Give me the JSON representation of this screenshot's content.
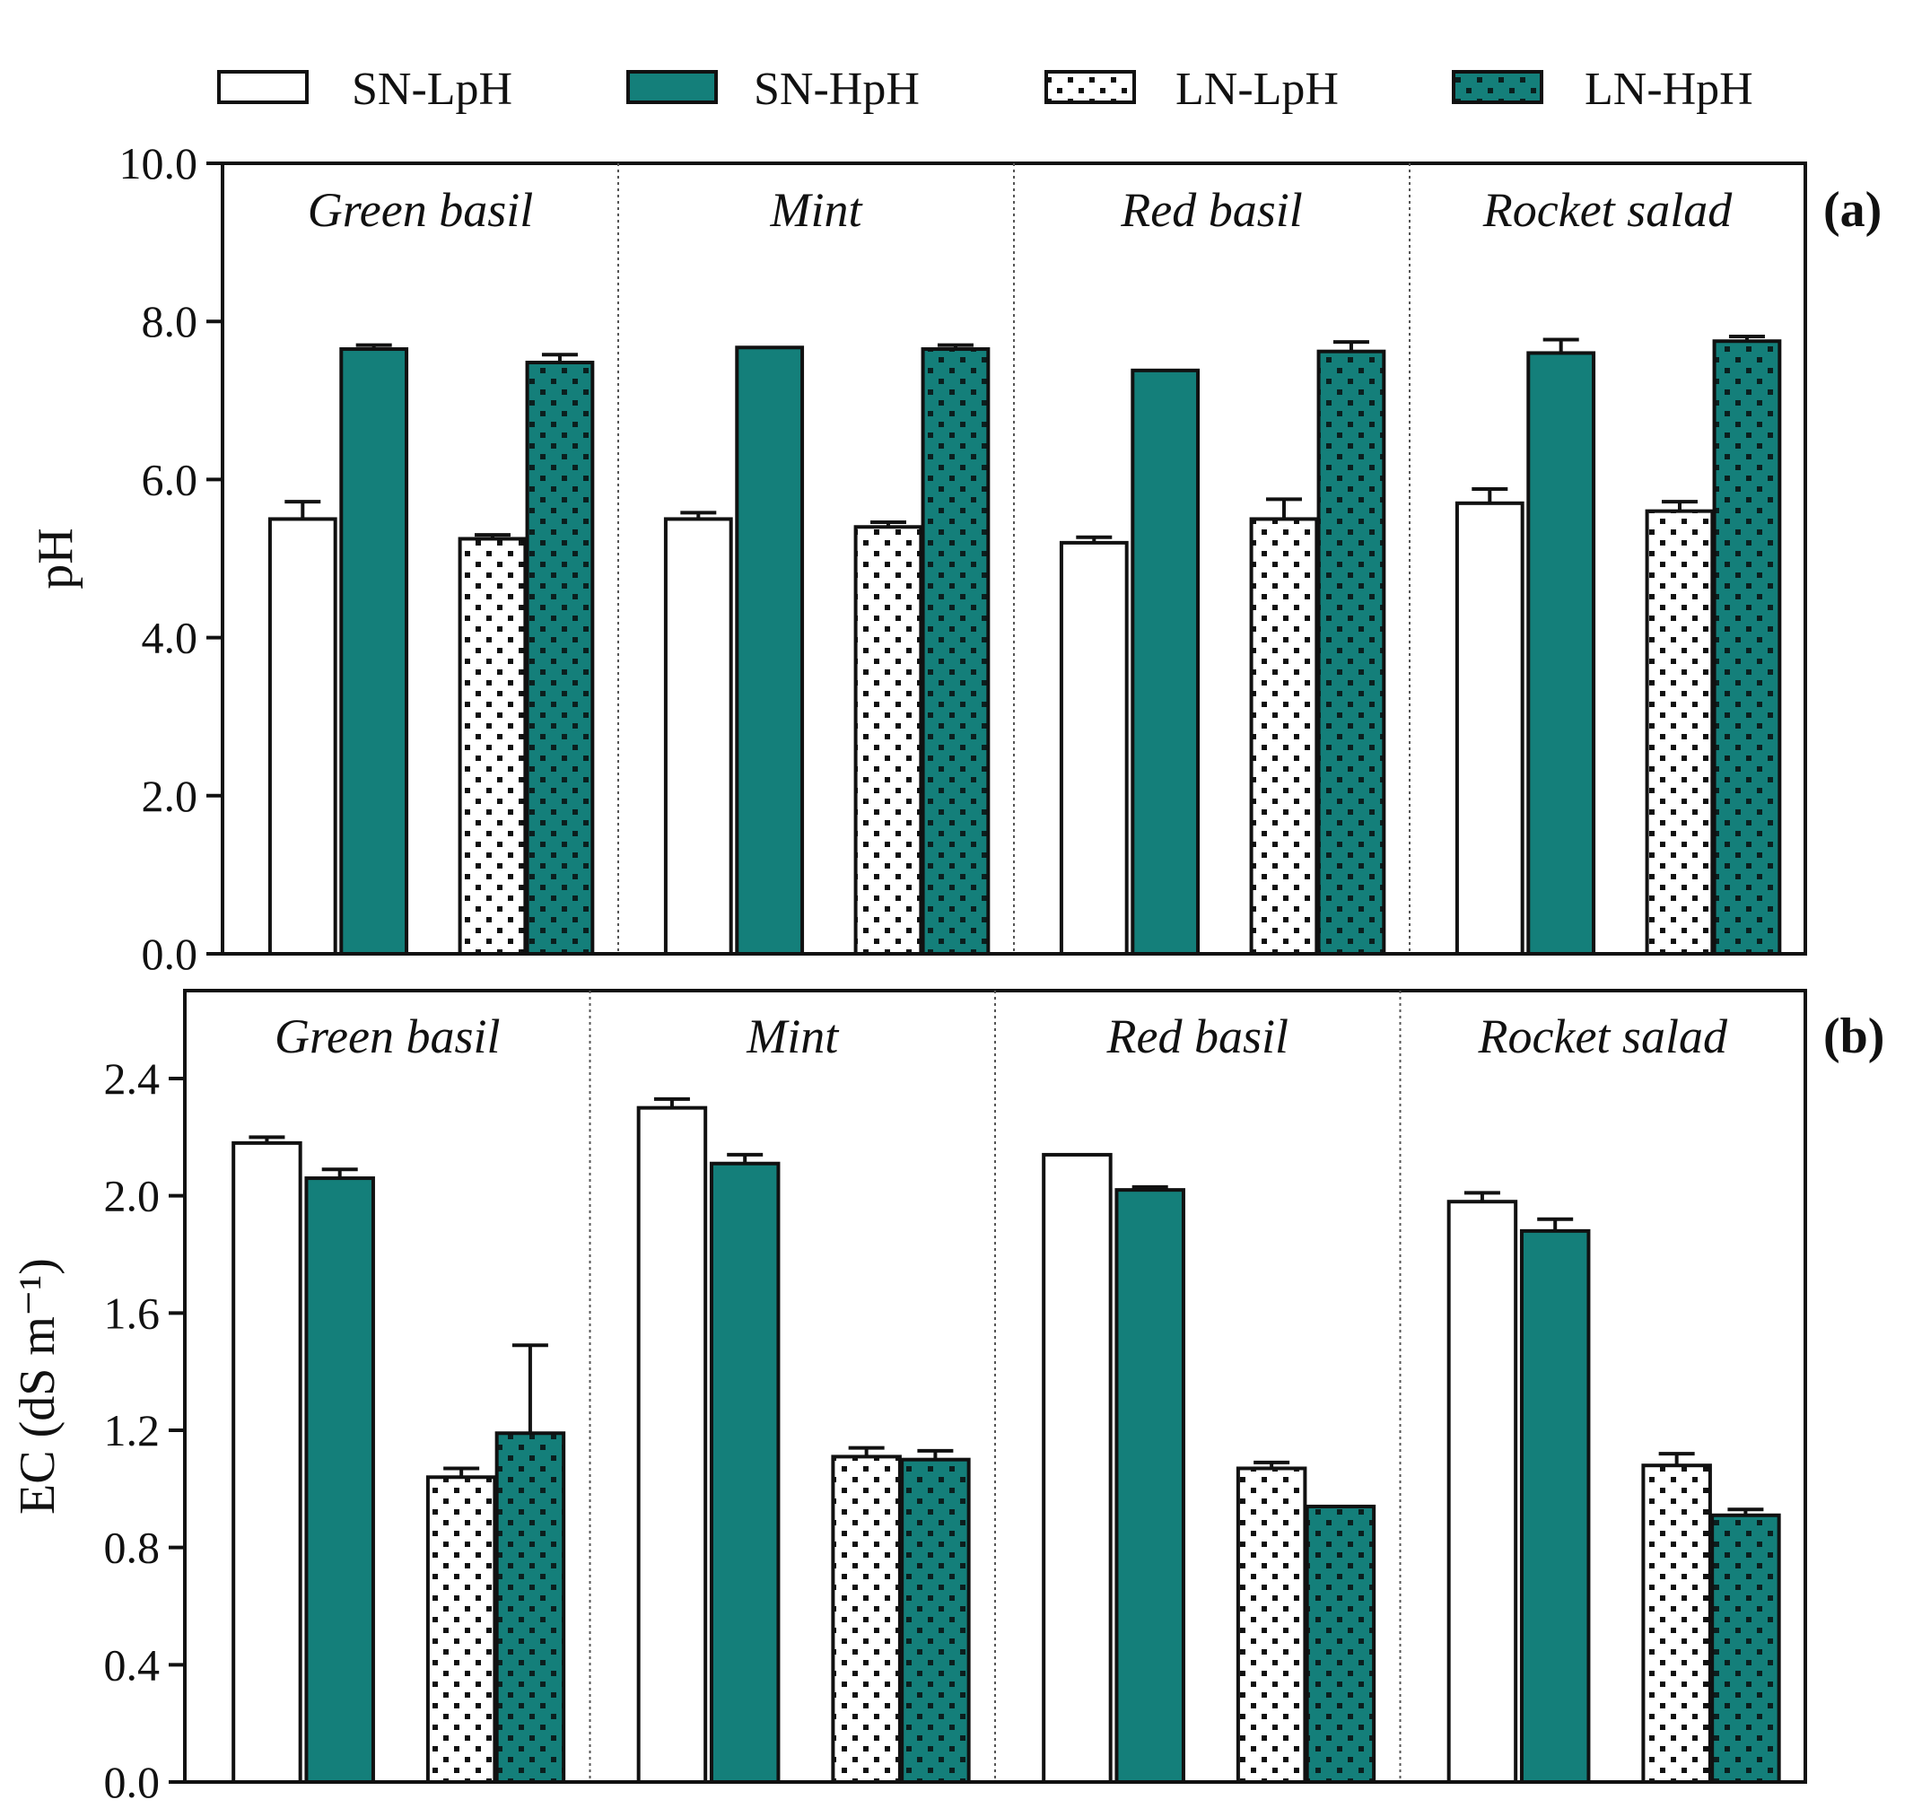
{
  "legend": {
    "items": [
      {
        "label": "SN-LpH",
        "fill": "white"
      },
      {
        "label": "SN-HpH",
        "fill": "teal"
      },
      {
        "label": "LN-LpH",
        "fill": "white-dotted"
      },
      {
        "label": "LN-HpH",
        "fill": "teal-dotted"
      }
    ]
  },
  "colors": {
    "teal": "#147f7a",
    "outline": "#111111",
    "dot_on_teal": "#0b1f1e"
  },
  "chart_data": [
    {
      "type": "bar",
      "panel_label": "(a)",
      "ylabel": "pH",
      "ylim": [
        0,
        10
      ],
      "yticks": [
        "0.0",
        "2.0",
        "4.0",
        "6.0",
        "8.0",
        "10.0"
      ],
      "categories": [
        "Green basil",
        "Mint",
        "Red basil",
        "Rocket salad"
      ],
      "series": [
        {
          "name": "SN-LpH",
          "values": [
            5.5,
            5.5,
            5.2,
            5.7
          ],
          "errors": [
            0.22,
            0.08,
            0.07,
            0.18
          ]
        },
        {
          "name": "SN-HpH",
          "values": [
            7.65,
            7.67,
            7.38,
            7.6
          ],
          "errors": [
            0.05,
            0.0,
            0.0,
            0.17
          ]
        },
        {
          "name": "LN-LpH",
          "values": [
            5.25,
            5.4,
            5.5,
            5.6
          ],
          "errors": [
            0.05,
            0.06,
            0.25,
            0.12
          ]
        },
        {
          "name": "LN-HpH",
          "values": [
            7.48,
            7.65,
            7.62,
            7.75
          ],
          "errors": [
            0.1,
            0.05,
            0.12,
            0.06
          ]
        }
      ]
    },
    {
      "type": "bar",
      "panel_label": "(b)",
      "ylabel": "EC (dS m⁻¹)",
      "ylim": [
        0,
        2.7
      ],
      "yticks": [
        "0.0",
        "0.4",
        "0.8",
        "1.2",
        "1.6",
        "2.0",
        "2.4"
      ],
      "categories": [
        "Green basil",
        "Mint",
        "Red basil",
        "Rocket salad"
      ],
      "series": [
        {
          "name": "SN-LpH",
          "values": [
            2.18,
            2.3,
            2.14,
            1.98
          ],
          "errors": [
            0.02,
            0.03,
            0.0,
            0.03
          ]
        },
        {
          "name": "SN-HpH",
          "values": [
            2.06,
            2.11,
            2.02,
            1.88
          ],
          "errors": [
            0.03,
            0.03,
            0.01,
            0.04
          ]
        },
        {
          "name": "LN-LpH",
          "values": [
            1.04,
            1.11,
            1.07,
            1.08
          ],
          "errors": [
            0.03,
            0.03,
            0.02,
            0.04
          ]
        },
        {
          "name": "LN-HpH",
          "values": [
            1.19,
            1.1,
            0.94,
            0.91
          ],
          "errors": [
            0.3,
            0.03,
            0.0,
            0.02
          ]
        }
      ]
    }
  ]
}
